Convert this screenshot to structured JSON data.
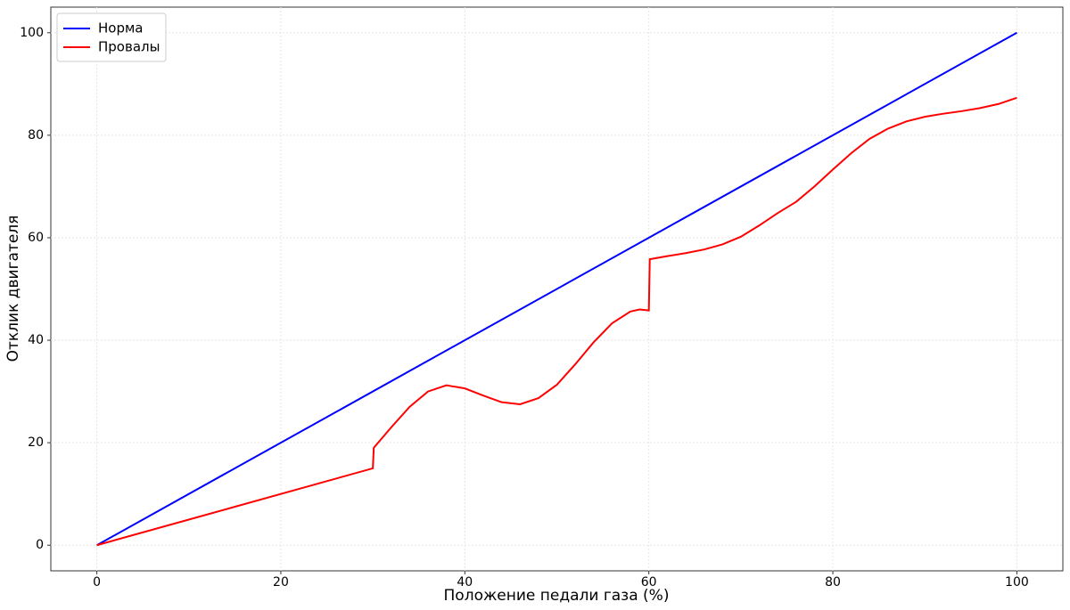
{
  "chart_data": {
    "type": "line",
    "xlabel": "Положение педали газа (%)",
    "ylabel": "Отклик двигателя",
    "series": [
      {
        "name": "Норма",
        "color": "#0000ff",
        "x": [
          0,
          100
        ],
        "values": [
          0,
          100
        ]
      },
      {
        "name": "Провалы",
        "color": "#ff0000",
        "x": [
          0,
          30,
          30.1,
          32,
          34,
          36,
          38,
          40,
          42,
          44,
          46,
          48,
          50,
          52,
          54,
          56,
          58,
          59,
          60,
          60.1,
          62,
          64,
          66,
          68,
          70,
          72,
          74,
          76,
          78,
          80,
          82,
          84,
          86,
          88,
          90,
          92,
          94,
          96,
          98,
          100
        ],
        "values": [
          0,
          15,
          19,
          23,
          27,
          30,
          31.2,
          30.6,
          29.2,
          27.9,
          27.5,
          28.7,
          31.3,
          35.3,
          39.6,
          43.3,
          45.6,
          46,
          45.8,
          55.8,
          56.4,
          57,
          57.7,
          58.7,
          60.2,
          62.4,
          64.8,
          67,
          70,
          73.3,
          76.5,
          79.3,
          81.3,
          82.7,
          83.6,
          84.2,
          84.7,
          85.3,
          86.1,
          87.3
        ]
      }
    ],
    "xlim": [
      -5,
      105
    ],
    "ylim": [
      -5,
      105
    ],
    "xticks": [
      0,
      20,
      40,
      60,
      80,
      100
    ],
    "yticks": [
      0,
      20,
      40,
      60,
      80,
      100
    ],
    "grid": true,
    "legend": "upper-left"
  }
}
